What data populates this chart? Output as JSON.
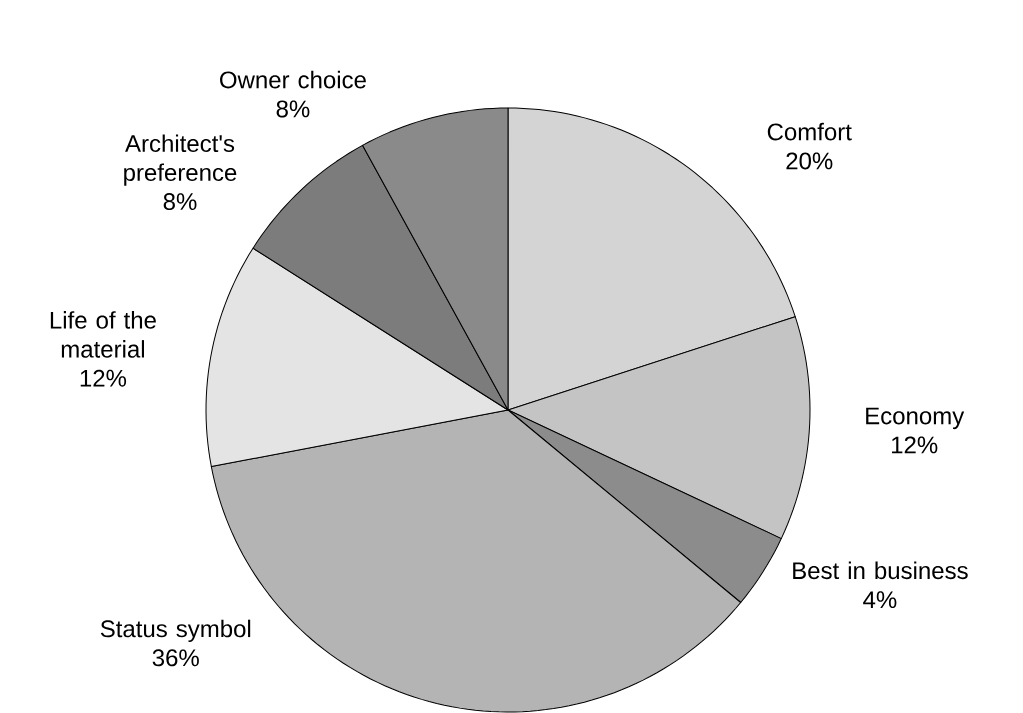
{
  "chart_data": {
    "type": "pie",
    "categories": [
      "Comfort",
      "Economy",
      "Best in business",
      "Status symbol",
      "Life of the material",
      "Architect's preference",
      "Owner choice"
    ],
    "values": [
      20,
      12,
      4,
      36,
      12,
      8,
      8
    ],
    "value_labels": [
      "20%",
      "12%",
      "4%",
      "36%",
      "12%",
      "8%",
      "8%"
    ],
    "colors": [
      "#d4d4d4",
      "#c4c4c4",
      "#8c8c8c",
      "#b4b4b4",
      "#e4e4e4",
      "#7c7c7c",
      "#8a8a8a"
    ]
  }
}
